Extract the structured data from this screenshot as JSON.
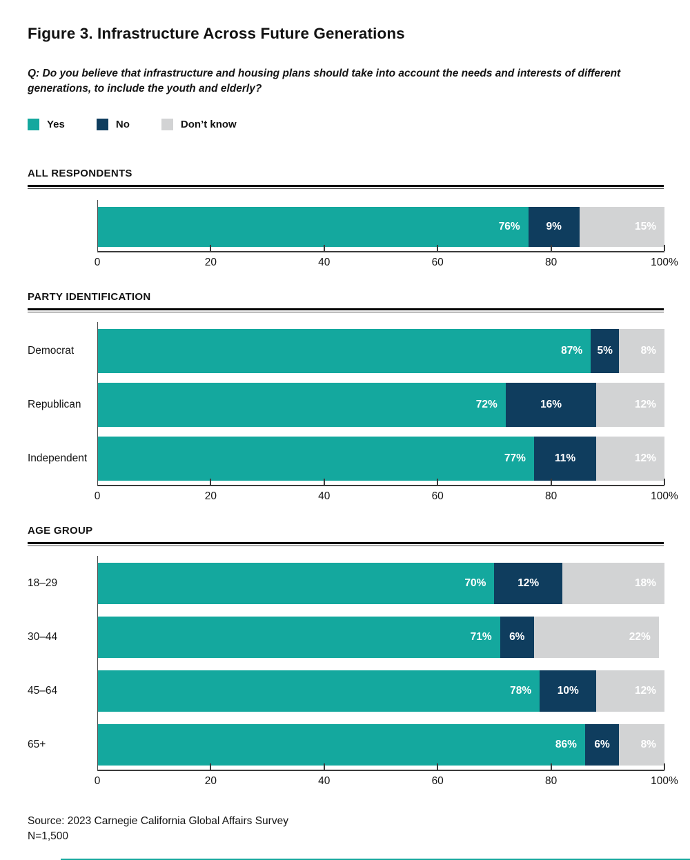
{
  "figure": {
    "title": "Figure 3. Infrastructure Across Future Generations",
    "question_lines": [
      "Q: Do you believe that infrastructure and housing plans should take into account the needs and interests of different",
      "generations, to include the youth and elderly?"
    ],
    "source_line1": "Source: 2023 Carnegie California Global Affairs Survey",
    "source_line2": "N=1,500"
  },
  "colors": {
    "yes": "#14A89E",
    "no": "#0F3D5E",
    "dont_know": "#D2D3D4",
    "text": "#141414",
    "rule": "#000000",
    "axis": "#3A3A3A",
    "accent_bottom_line": "#14A89E"
  },
  "chart_data": {
    "type": "bar",
    "stacked": true,
    "orientation": "horizontal",
    "unit": "%",
    "xlim": [
      0,
      100
    ],
    "x_ticks": [
      0,
      20,
      40,
      60,
      80,
      100
    ],
    "x_tick_labels": [
      "0",
      "20",
      "40",
      "60",
      "80",
      "100%"
    ],
    "legend_position": "top",
    "grid": false,
    "series": [
      {
        "key": "yes",
        "name": "Yes",
        "color": "#14A89E"
      },
      {
        "key": "no",
        "name": "No",
        "color": "#0F3D5E"
      },
      {
        "key": "dont-know",
        "name": "Don’t know",
        "color": "#D2D3D4"
      }
    ],
    "groups": [
      {
        "header": "ALL RESPONDENTS",
        "rows": [
          {
            "label": "",
            "values": [
              76,
              9,
              15
            ]
          }
        ]
      },
      {
        "header": "PARTY IDENTIFICATION",
        "rows": [
          {
            "label": "Democrat",
            "values": [
              87,
              5,
              8
            ]
          },
          {
            "label": "Republican",
            "values": [
              72,
              16,
              12
            ]
          },
          {
            "label": "Independent",
            "values": [
              77,
              11,
              12
            ]
          }
        ]
      },
      {
        "header": "AGE GROUP",
        "rows": [
          {
            "label": "18–29",
            "values": [
              70,
              12,
              18
            ]
          },
          {
            "label": "30–44",
            "values": [
              71,
              6,
              22
            ]
          },
          {
            "label": "45–64",
            "values": [
              78,
              10,
              12
            ]
          },
          {
            "label": "65+",
            "values": [
              86,
              6,
              8
            ]
          }
        ]
      }
    ]
  }
}
